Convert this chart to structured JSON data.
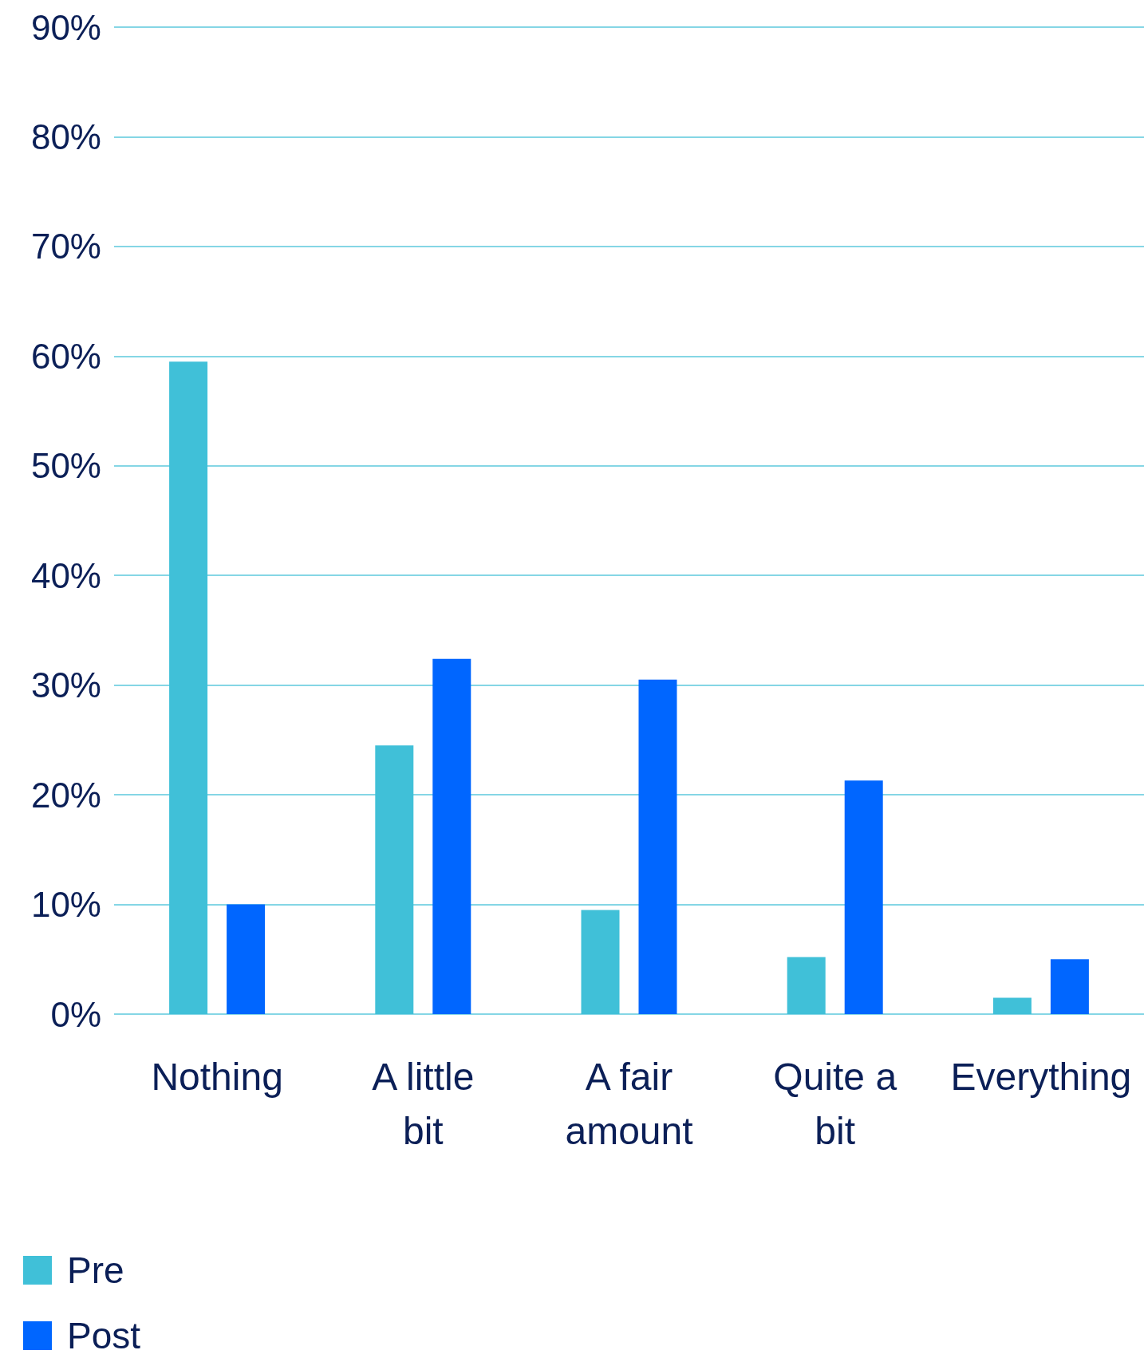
{
  "chart_data": {
    "type": "bar",
    "categories": [
      "Nothing",
      "A little bit",
      "A fair amount",
      "Quite a bit",
      "Everything"
    ],
    "series": [
      {
        "name": "Pre",
        "color": "#40c0d8",
        "values": [
          59.5,
          24.5,
          9.5,
          5.2,
          1.5
        ]
      },
      {
        "name": "Post",
        "color": "#0066ff",
        "values": [
          10,
          32.4,
          30.5,
          21.3,
          5
        ]
      }
    ],
    "ylim": [
      0,
      90
    ],
    "yticks": [
      {
        "value": 0,
        "label": "0%"
      },
      {
        "value": 10,
        "label": "10%"
      },
      {
        "value": 20,
        "label": "20%"
      },
      {
        "value": 30,
        "label": "30%"
      },
      {
        "value": 40,
        "label": "40%"
      },
      {
        "value": 50,
        "label": "50%"
      },
      {
        "value": 60,
        "label": "60%"
      },
      {
        "value": 70,
        "label": "70%"
      },
      {
        "value": 80,
        "label": "80%"
      },
      {
        "value": 90,
        "label": "90%"
      }
    ],
    "grid": "y",
    "legend": "bottom left"
  }
}
